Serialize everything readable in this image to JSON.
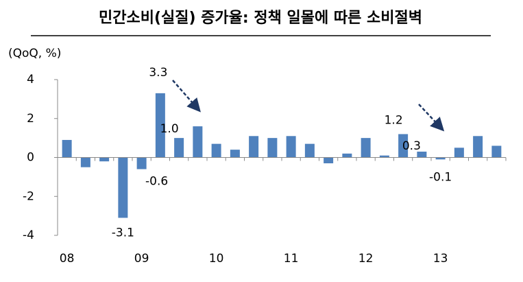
{
  "chart_data": {
    "type": "bar",
    "title": "민간소비(실질) 증가율: 정책 일몰에 따른 소비절벽",
    "y_axis_label": "(QoQ, %)",
    "categories": [
      "08",
      null,
      null,
      null,
      "09",
      null,
      null,
      null,
      "10",
      null,
      null,
      null,
      "11",
      null,
      null,
      null,
      "12",
      null,
      null,
      null,
      "13",
      null,
      null,
      null
    ],
    "values": [
      0.9,
      -0.5,
      -0.2,
      -3.1,
      -0.6,
      3.3,
      1.0,
      1.6,
      0.7,
      0.4,
      1.1,
      1.0,
      1.1,
      0.7,
      -0.3,
      0.2,
      1.0,
      0.1,
      1.2,
      0.3,
      -0.1,
      0.5,
      1.1,
      0.6
    ],
    "value_labels": [
      null,
      null,
      null,
      "-3.1",
      "-0.6",
      "3.3",
      "1.0",
      null,
      null,
      null,
      null,
      null,
      null,
      null,
      null,
      null,
      null,
      null,
      "1.2",
      "0.3",
      "-0.1",
      null,
      null,
      null
    ],
    "color": "#4f81bd",
    "ylim": [
      -4,
      4
    ],
    "yticks": [
      -4,
      -2,
      0,
      2,
      4
    ],
    "grid": false
  }
}
